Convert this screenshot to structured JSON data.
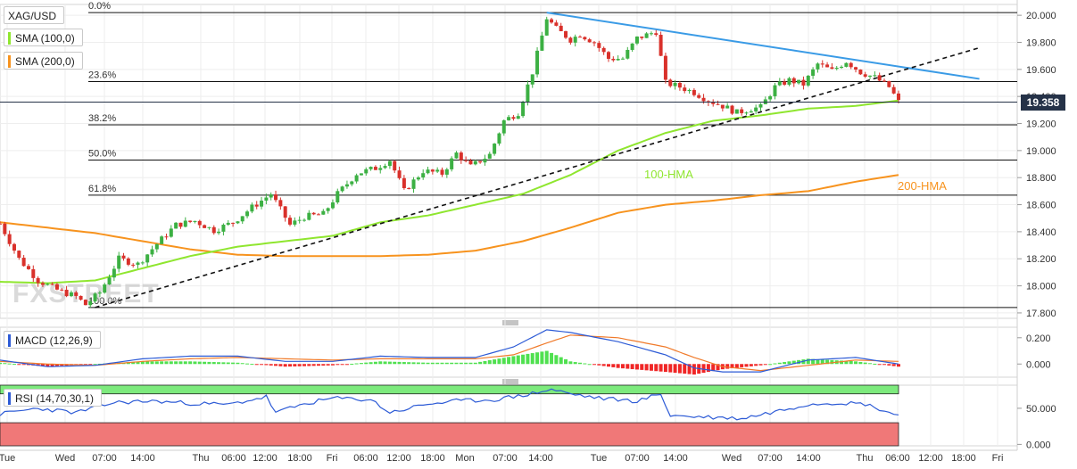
{
  "legend": {
    "symbol": "XAG/USD",
    "sma100": "SMA (100,0)",
    "sma200": "SMA (200,0)",
    "macd": "MACD (12,26,9)",
    "rsi": "RSI (14,70,30,1)"
  },
  "last_price": "19.358",
  "watermark": "FXSTREET",
  "colors": {
    "up": "#3cb043",
    "down": "#d9312b",
    "sma100": "#8fe62f",
    "sma200": "#f7931e",
    "trendline": "#3a9be6",
    "macd_line": "#2d5bd6",
    "signal_line": "#f07a2a",
    "rsi_line": "#2d5bd6",
    "rsi_upper": "#7dea7d",
    "rsi_lower": "#f07878",
    "price_box": "#253248"
  },
  "chart_data": [
    {
      "type": "candlestick",
      "name": "price",
      "y_ticks": [
        "20.000",
        "19.800",
        "19.600",
        "19.400",
        "19.200",
        "19.000",
        "18.800",
        "18.600",
        "18.400",
        "18.200",
        "18.000",
        "17.800"
      ],
      "ylim": [
        17.76,
        20.08
      ],
      "x_tick_labels": [
        "Tue",
        "Wed",
        "07:00",
        "14:00",
        "Thu",
        "06:00",
        "12:00",
        "18:00",
        "Fri",
        "06:00",
        "12:00",
        "18:00",
        "Mon",
        "07:00",
        "14:00",
        "Tue",
        "07:00",
        "14:00",
        "Wed",
        "07:00",
        "14:00",
        "Thu",
        "06:00",
        "12:00",
        "18:00",
        "Fri"
      ],
      "fibonacci": [
        {
          "label": "0.0%",
          "value": 20.02
        },
        {
          "label": "23.6%",
          "value": 19.51
        },
        {
          "label": "38.2%",
          "value": 19.19
        },
        {
          "label": "50.0%",
          "value": 18.93
        },
        {
          "label": "61.8%",
          "value": 18.67
        },
        {
          "label": "100.0%",
          "value": 17.84
        }
      ],
      "annotations": [
        {
          "text": "100-HMA"
        },
        {
          "text": "200-HMA"
        }
      ],
      "anchors": [
        [
          0,
          18.46
        ],
        [
          4,
          18.2
        ],
        [
          8,
          18.04
        ],
        [
          12,
          17.97
        ],
        [
          16,
          17.92
        ],
        [
          18,
          17.86
        ],
        [
          21,
          17.95
        ],
        [
          25,
          18.2
        ],
        [
          29,
          18.16
        ],
        [
          33,
          18.31
        ],
        [
          37,
          18.45
        ],
        [
          41,
          18.48
        ],
        [
          45,
          18.41
        ],
        [
          49,
          18.47
        ],
        [
          53,
          18.58
        ],
        [
          57,
          18.68
        ],
        [
          58,
          18.62
        ],
        [
          61,
          18.45
        ],
        [
          64,
          18.51
        ],
        [
          68,
          18.53
        ],
        [
          71,
          18.68
        ],
        [
          75,
          18.83
        ],
        [
          79,
          18.87
        ],
        [
          82,
          18.93
        ],
        [
          85,
          18.7
        ],
        [
          89,
          18.85
        ],
        [
          93,
          18.83
        ],
        [
          96,
          18.98
        ],
        [
          99,
          18.88
        ],
        [
          103,
          18.97
        ],
        [
          106,
          19.22
        ],
        [
          109,
          19.28
        ],
        [
          112,
          19.58
        ],
        [
          115,
          19.98
        ],
        [
          117,
          19.9
        ],
        [
          120,
          19.82
        ],
        [
          122,
          19.86
        ],
        [
          125,
          19.8
        ],
        [
          128,
          19.68
        ],
        [
          131,
          19.68
        ],
        [
          134,
          19.83
        ],
        [
          138,
          19.88
        ],
        [
          140,
          19.5
        ],
        [
          143,
          19.47
        ],
        [
          146,
          19.43
        ],
        [
          149,
          19.37
        ],
        [
          152,
          19.33
        ],
        [
          155,
          19.28
        ],
        [
          158,
          19.31
        ],
        [
          160,
          19.32
        ],
        [
          163,
          19.47
        ],
        [
          166,
          19.52
        ],
        [
          169,
          19.49
        ],
        [
          172,
          19.64
        ],
        [
          175,
          19.59
        ],
        [
          178,
          19.66
        ],
        [
          181,
          19.58
        ],
        [
          184,
          19.54
        ],
        [
          187,
          19.47
        ],
        [
          189,
          19.36
        ]
      ],
      "sma100": [
        [
          0,
          18.03
        ],
        [
          10,
          18.02
        ],
        [
          20,
          18.04
        ],
        [
          30,
          18.13
        ],
        [
          40,
          18.22
        ],
        [
          50,
          18.29
        ],
        [
          60,
          18.33
        ],
        [
          70,
          18.37
        ],
        [
          80,
          18.47
        ],
        [
          90,
          18.52
        ],
        [
          100,
          18.6
        ],
        [
          110,
          18.68
        ],
        [
          120,
          18.82
        ],
        [
          130,
          19.0
        ],
        [
          140,
          19.13
        ],
        [
          150,
          19.22
        ],
        [
          160,
          19.26
        ],
        [
          170,
          19.31
        ],
        [
          180,
          19.33
        ],
        [
          189,
          19.37
        ]
      ],
      "sma200": [
        [
          0,
          18.47
        ],
        [
          10,
          18.43
        ],
        [
          20,
          18.39
        ],
        [
          30,
          18.33
        ],
        [
          40,
          18.27
        ],
        [
          50,
          18.23
        ],
        [
          60,
          18.22
        ],
        [
          70,
          18.22
        ],
        [
          80,
          18.22
        ],
        [
          90,
          18.23
        ],
        [
          100,
          18.26
        ],
        [
          110,
          18.33
        ],
        [
          120,
          18.43
        ],
        [
          130,
          18.54
        ],
        [
          140,
          18.6
        ],
        [
          150,
          18.63
        ],
        [
          160,
          18.67
        ],
        [
          170,
          18.7
        ],
        [
          180,
          18.77
        ],
        [
          189,
          18.82
        ]
      ],
      "trendlines": [
        {
          "style": "solid",
          "from": [
            115,
            20.02
          ],
          "to": [
            206,
            19.53
          ]
        },
        {
          "style": "dashed",
          "from": [
            20,
            17.84
          ],
          "to": [
            206,
            19.76
          ]
        }
      ],
      "candle_count": 190
    },
    {
      "type": "macd",
      "name": "MACD (12,26,9)",
      "y_ticks": [
        "0.200",
        "0.000"
      ],
      "ylim": [
        -0.1,
        0.28
      ],
      "macd_anchors": [
        [
          0,
          0.03
        ],
        [
          10,
          -0.02
        ],
        [
          20,
          -0.01
        ],
        [
          30,
          0.04
        ],
        [
          40,
          0.06
        ],
        [
          50,
          0.06
        ],
        [
          60,
          0.02
        ],
        [
          70,
          0.02
        ],
        [
          80,
          0.06
        ],
        [
          90,
          0.05
        ],
        [
          100,
          0.05
        ],
        [
          108,
          0.13
        ],
        [
          115,
          0.26
        ],
        [
          120,
          0.24
        ],
        [
          130,
          0.17
        ],
        [
          140,
          0.07
        ],
        [
          146,
          -0.03
        ],
        [
          152,
          -0.06
        ],
        [
          160,
          -0.06
        ],
        [
          170,
          0.03
        ],
        [
          180,
          0.05
        ],
        [
          189,
          0.0
        ]
      ],
      "signal_anchors": [
        [
          0,
          0.02
        ],
        [
          10,
          0.0
        ],
        [
          20,
          -0.01
        ],
        [
          30,
          0.02
        ],
        [
          40,
          0.04
        ],
        [
          50,
          0.05
        ],
        [
          60,
          0.04
        ],
        [
          70,
          0.03
        ],
        [
          80,
          0.04
        ],
        [
          90,
          0.04
        ],
        [
          100,
          0.04
        ],
        [
          108,
          0.07
        ],
        [
          115,
          0.16
        ],
        [
          120,
          0.22
        ],
        [
          130,
          0.2
        ],
        [
          140,
          0.13
        ],
        [
          146,
          0.05
        ],
        [
          152,
          -0.02
        ],
        [
          160,
          -0.05
        ],
        [
          170,
          -0.01
        ],
        [
          180,
          0.03
        ],
        [
          189,
          0.02
        ]
      ]
    },
    {
      "type": "rsi",
      "name": "RSI (14,70,30,1)",
      "y_ticks": [
        "50.000",
        "0.000"
      ],
      "ylim": [
        -2,
        82
      ],
      "overbought": 70,
      "oversold": 30,
      "rsi_anchors": [
        [
          0,
          42
        ],
        [
          8,
          50
        ],
        [
          16,
          44
        ],
        [
          24,
          58
        ],
        [
          32,
          60
        ],
        [
          40,
          57
        ],
        [
          48,
          55
        ],
        [
          56,
          66
        ],
        [
          58,
          44
        ],
        [
          64,
          56
        ],
        [
          70,
          64
        ],
        [
          78,
          62
        ],
        [
          82,
          44
        ],
        [
          90,
          56
        ],
        [
          96,
          60
        ],
        [
          104,
          62
        ],
        [
          110,
          68
        ],
        [
          116,
          76
        ],
        [
          120,
          70
        ],
        [
          126,
          64
        ],
        [
          134,
          60
        ],
        [
          139,
          70
        ],
        [
          141,
          40
        ],
        [
          148,
          38
        ],
        [
          156,
          36
        ],
        [
          162,
          44
        ],
        [
          170,
          56
        ],
        [
          176,
          58
        ],
        [
          182,
          56
        ],
        [
          189,
          40
        ]
      ]
    }
  ]
}
